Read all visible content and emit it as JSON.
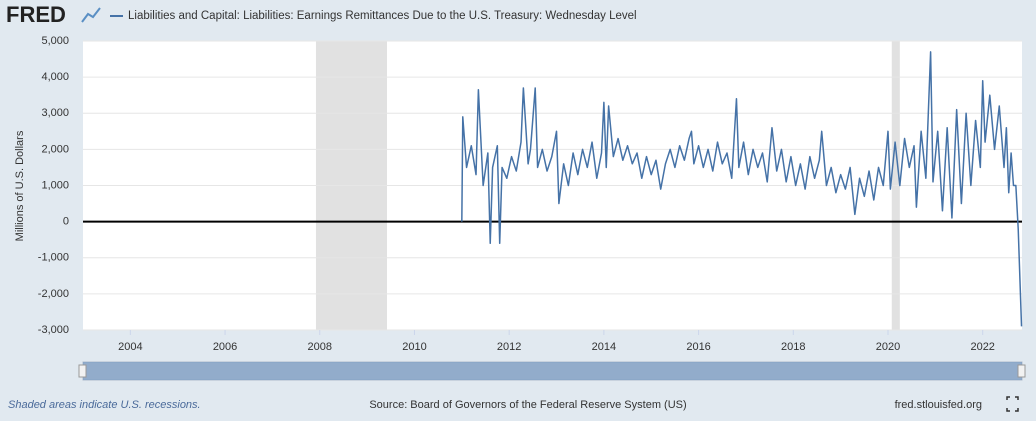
{
  "chart_data": {
    "type": "line",
    "logo": "FRED",
    "ylabel": "Millions of U.S. Dollars",
    "footnote": "Shaded areas indicate U.S. recessions.",
    "source": "Source: Board of Governors of the Federal Reserve System (US)",
    "site": "fred.stlouisfed.org",
    "xlim": [
      2003,
      2022.83
    ],
    "xticks": [
      2004,
      2006,
      2008,
      2010,
      2012,
      2014,
      2016,
      2018,
      2020,
      2022
    ],
    "ylim": [
      -3000,
      5000
    ],
    "yticks": [
      {
        "value": -3000,
        "label": "-3,000"
      },
      {
        "value": -2000,
        "label": "-2,000"
      },
      {
        "value": -1000,
        "label": "-1,000"
      },
      0,
      {
        "value": 1000,
        "label": "1,000"
      },
      {
        "value": 2000,
        "label": "2,000"
      },
      {
        "value": 3000,
        "label": "3,000"
      },
      {
        "value": 4000,
        "label": "4,000"
      },
      {
        "value": 5000,
        "label": "5,000"
      }
    ],
    "grid": true,
    "recessions": [
      [
        2007.92,
        2009.42
      ],
      [
        2020.08,
        2020.25
      ]
    ],
    "x": [
      2011.0,
      2011.02,
      2011.1,
      2011.2,
      2011.3,
      2011.35,
      2011.45,
      2011.55,
      2011.6,
      2011.65,
      2011.75,
      2011.8,
      2011.85,
      2011.95,
      2012.05,
      2012.15,
      2012.25,
      2012.3,
      2012.4,
      2012.45,
      2012.55,
      2012.6,
      2012.7,
      2012.8,
      2012.9,
      2013.0,
      2013.05,
      2013.15,
      2013.25,
      2013.35,
      2013.45,
      2013.55,
      2013.65,
      2013.75,
      2013.85,
      2013.95,
      2014.0,
      2014.05,
      2014.1,
      2014.2,
      2014.3,
      2014.4,
      2014.5,
      2014.6,
      2014.7,
      2014.8,
      2014.9,
      2015.0,
      2015.1,
      2015.2,
      2015.3,
      2015.4,
      2015.5,
      2015.6,
      2015.7,
      2015.8,
      2015.85,
      2015.9,
      2016.0,
      2016.1,
      2016.2,
      2016.3,
      2016.4,
      2016.5,
      2016.6,
      2016.7,
      2016.8,
      2016.85,
      2016.95,
      2017.05,
      2017.15,
      2017.25,
      2017.35,
      2017.45,
      2017.55,
      2017.65,
      2017.75,
      2017.85,
      2017.95,
      2018.05,
      2018.15,
      2018.25,
      2018.35,
      2018.45,
      2018.55,
      2018.6,
      2018.7,
      2018.8,
      2018.9,
      2019.0,
      2019.1,
      2019.2,
      2019.3,
      2019.4,
      2019.5,
      2019.6,
      2019.7,
      2019.8,
      2019.9,
      2020.0,
      2020.05,
      2020.15,
      2020.25,
      2020.35,
      2020.45,
      2020.55,
      2020.6,
      2020.7,
      2020.8,
      2020.9,
      2020.95,
      2021.05,
      2021.15,
      2021.25,
      2021.35,
      2021.45,
      2021.55,
      2021.65,
      2021.75,
      2021.85,
      2021.95,
      2022.0,
      2022.05,
      2022.15,
      2022.25,
      2022.35,
      2022.45,
      2022.5,
      2022.55,
      2022.6,
      2022.65,
      2022.7,
      2022.75,
      2022.82
    ],
    "series": [
      {
        "name": "Liabilities and Capital: Liabilities: Earnings Remittances Due to the U.S. Treasury: Wednesday Level",
        "color": "#4572a7",
        "values": [
          0,
          2900,
          1500,
          2100,
          1300,
          3650,
          1000,
          1900,
          -600,
          1500,
          2100,
          -600,
          1500,
          1200,
          1800,
          1400,
          2200,
          3700,
          1600,
          2000,
          3700,
          1500,
          2000,
          1400,
          1800,
          2500,
          500,
          1600,
          1000,
          1900,
          1300,
          2000,
          1500,
          2200,
          1200,
          1900,
          3300,
          1500,
          3200,
          1800,
          2300,
          1700,
          2100,
          1600,
          1900,
          1200,
          1800,
          1300,
          1700,
          900,
          1600,
          2000,
          1500,
          2100,
          1700,
          2300,
          2500,
          1600,
          2100,
          1500,
          2000,
          1400,
          2200,
          1600,
          1900,
          1200,
          3400,
          1500,
          2200,
          1300,
          2000,
          1500,
          1900,
          1100,
          2600,
          1400,
          2000,
          1100,
          1800,
          1000,
          1600,
          900,
          1800,
          1200,
          1700,
          2500,
          1000,
          1500,
          800,
          1300,
          900,
          1500,
          200,
          1200,
          700,
          1400,
          600,
          1500,
          1000,
          2500,
          900,
          2200,
          1000,
          2300,
          1500,
          2100,
          400,
          2500,
          1200,
          4700,
          1100,
          2500,
          300,
          2600,
          100,
          3100,
          500,
          3000,
          1000,
          2800,
          1500,
          3900,
          2200,
          3500,
          2000,
          3200,
          1500,
          2600,
          800,
          1900,
          1000,
          1000,
          -200,
          -2900
        ]
      }
    ]
  }
}
